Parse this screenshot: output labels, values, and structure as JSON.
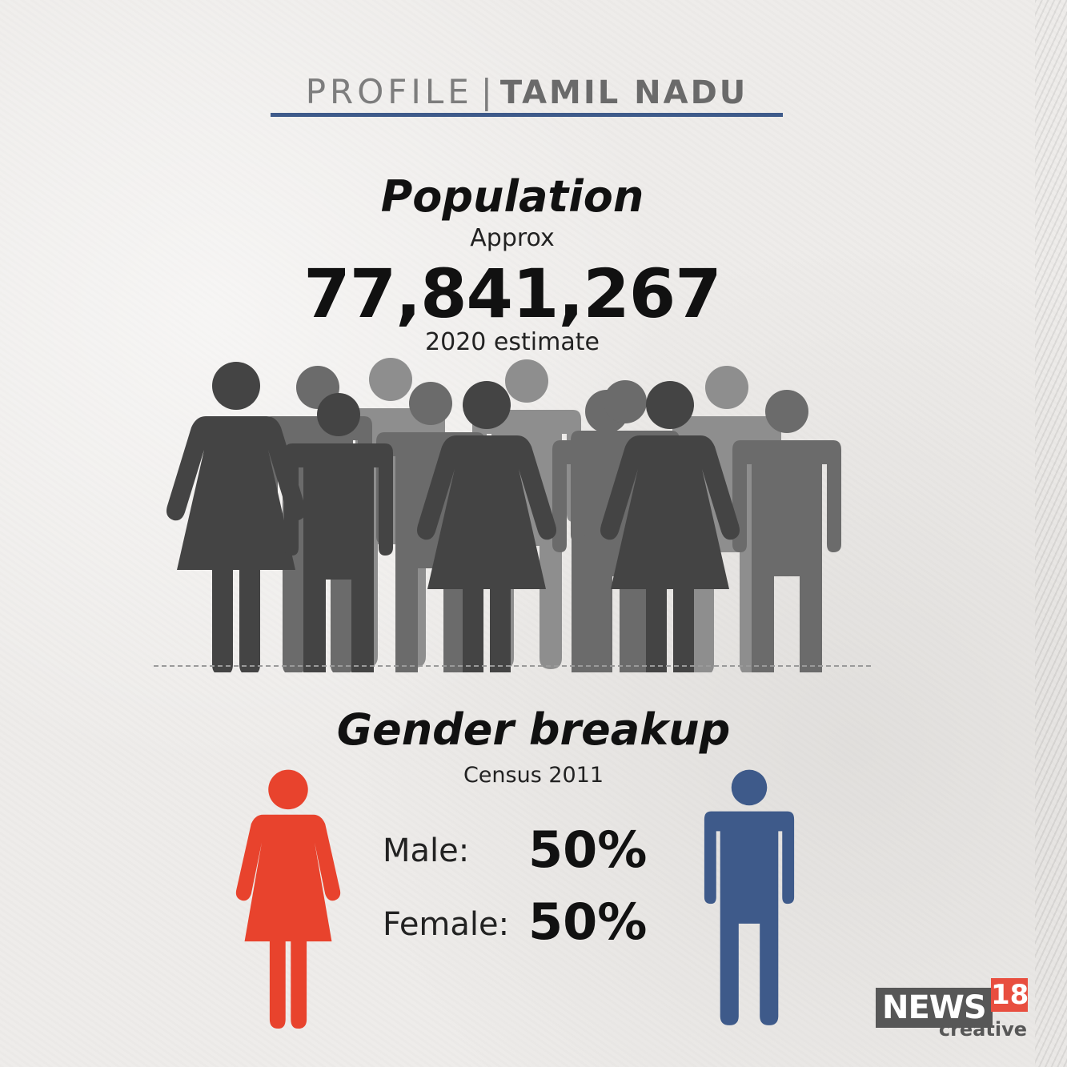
{
  "header": {
    "profile": "PROFILE",
    "separator": "|",
    "state": "TAMIL NADU"
  },
  "population": {
    "title": "Population",
    "approx_label": "Approx",
    "value": "77,841,267",
    "note": "2020 estimate"
  },
  "gender": {
    "title": "Gender breakup",
    "note": "Census 2011",
    "male_label": "Male:",
    "male_value": "50%",
    "female_label": "Female:",
    "female_value": "50%"
  },
  "logo": {
    "news": "NEWS",
    "number": "18",
    "sub": "creative"
  },
  "colors": {
    "accent_blue": "#3e5a8a",
    "female_red": "#e8432d",
    "male_blue": "#3e5a8a",
    "crowd_dark": "#444444",
    "crowd_mid": "#6b6b6b",
    "crowd_light": "#8e8e8e",
    "logo_gray": "#575757",
    "logo_red": "#e84e3f"
  },
  "icons": [
    "woman-icon",
    "man-icon",
    "crowd-icon"
  ]
}
